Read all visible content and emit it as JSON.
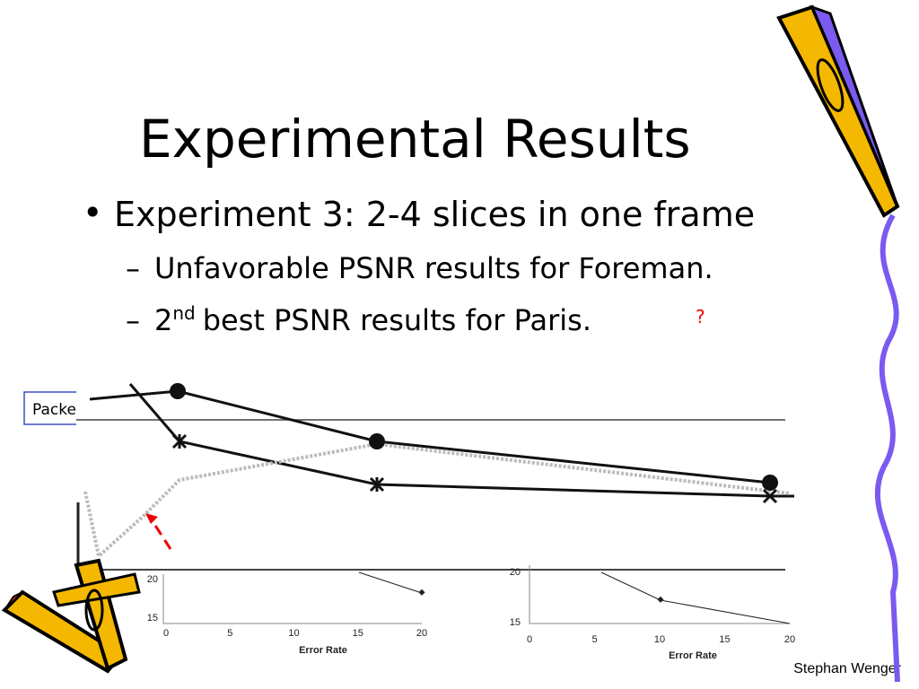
{
  "slide": {
    "title": "Experimental Results",
    "bullets": [
      {
        "text": "Experiment 3: 2-4 slices in one frame",
        "sub": [
          {
            "text": "Unfavorable PSNR results for Foreman."
          },
          {
            "base": "2",
            "sup": "nd",
            "rest": "best PSNR results for Paris.",
            "note": "?"
          }
        ]
      }
    ],
    "callout": "Packe",
    "figures": [
      {
        "yticks": [
          20,
          15
        ],
        "xticks": [
          0,
          5,
          10,
          15,
          20
        ],
        "xlabel": "Error Rate"
      },
      {
        "yticks": [
          20,
          15
        ],
        "xticks": [
          0,
          5,
          10,
          15,
          20
        ],
        "xlabel": "Error Rate"
      }
    ],
    "footer": "Stephan Wenger"
  }
}
